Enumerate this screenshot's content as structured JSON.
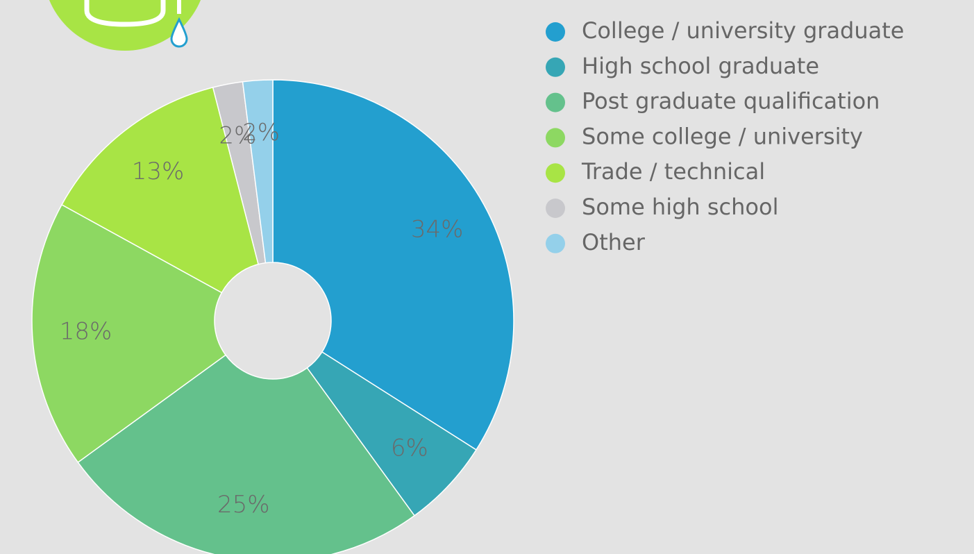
{
  "chart_data": {
    "type": "donut",
    "categories": [
      "College / university graduate",
      "High school graduate",
      "Post graduate qualification",
      "Some college / university",
      "Trade / technical",
      "Some high school",
      "Other"
    ],
    "values": [
      34,
      6,
      25,
      18,
      13,
      2,
      2
    ],
    "value_labels": [
      "34%",
      "6%",
      "25%",
      "18%",
      "13%",
      "2%",
      "2%"
    ],
    "colors": [
      "#239fcf",
      "#36a6b5",
      "#64c18c",
      "#8dd862",
      "#a8e445",
      "#c8c8cc",
      "#94d0ea"
    ],
    "legend": "right"
  }
}
